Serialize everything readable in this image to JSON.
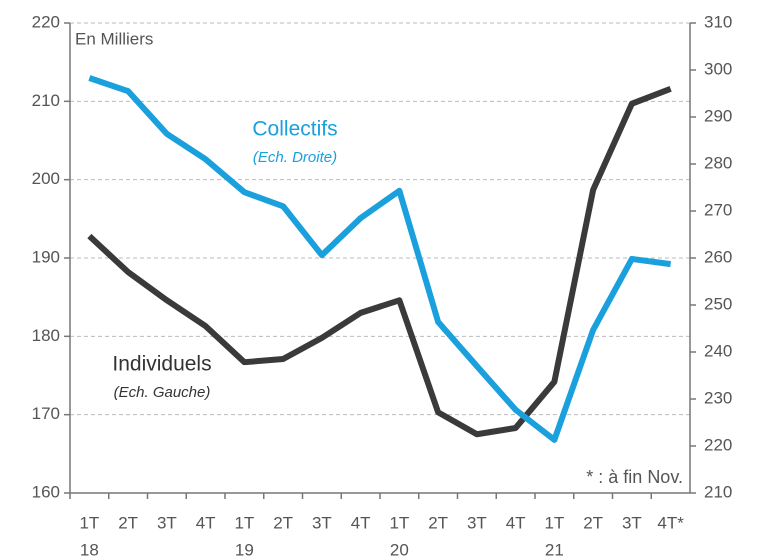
{
  "chart_data": {
    "type": "line",
    "annotations": {
      "unit": "En Milliers",
      "note": "* : à fin Nov."
    },
    "categories": [
      "1T",
      "2T",
      "3T",
      "4T",
      "1T",
      "2T",
      "3T",
      "4T",
      "1T",
      "2T",
      "3T",
      "4T",
      "1T",
      "2T",
      "3T",
      "4T*"
    ],
    "category_years": [
      "18",
      null,
      null,
      null,
      "19",
      null,
      null,
      null,
      "20",
      null,
      null,
      null,
      "21",
      null,
      null,
      null
    ],
    "ylim": [
      160,
      220
    ],
    "yticks": [
      160,
      170,
      180,
      190,
      200,
      210,
      220
    ],
    "y2lim": [
      210,
      310
    ],
    "y2ticks": [
      210,
      220,
      230,
      240,
      250,
      260,
      270,
      280,
      290,
      300,
      310
    ],
    "grid": true,
    "series": [
      {
        "name": "Individuels",
        "subtitle": "(Ech. Gauche)",
        "color": "#3a3a3a",
        "axis": "y",
        "values": [
          192.8,
          188.2,
          184.6,
          181.3,
          176.7,
          177.1,
          179.8,
          183.0,
          184.6,
          170.3,
          167.5,
          168.3,
          174.2,
          198.7,
          209.7,
          211.6
        ]
      },
      {
        "name": "Collectifs",
        "subtitle": "(Ech. Droite)",
        "color": "#1aa0dc",
        "axis": "y2",
        "values": [
          298.3,
          295.5,
          286.4,
          281.0,
          274.0,
          271.0,
          260.6,
          268.5,
          274.3,
          246.4,
          237.0,
          227.7,
          221.3,
          244.7,
          259.8,
          258.7
        ]
      }
    ]
  }
}
